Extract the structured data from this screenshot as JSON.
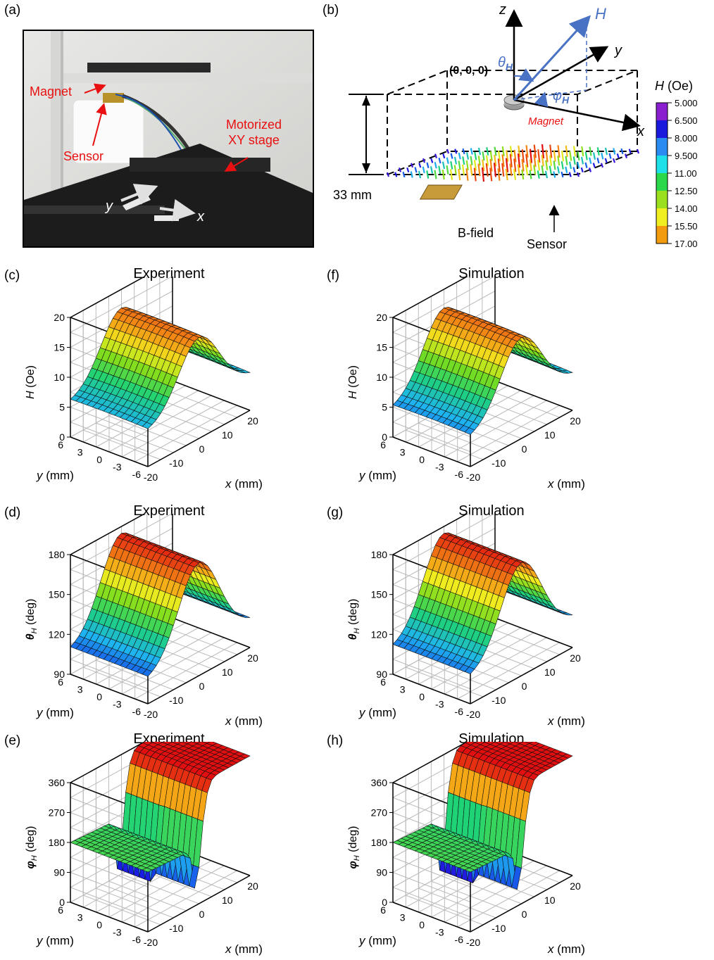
{
  "panels": {
    "a": "(a)",
    "b": "(b)",
    "c": "(c)",
    "d": "(d)",
    "e": "(e)",
    "f": "(f)",
    "g": "(g)",
    "h": "(h)"
  },
  "photo": {
    "magnet": "Magnet",
    "sensor": "Sensor",
    "stage_line1": "Motorized",
    "stage_line2": "XY stage",
    "axis_y": "y",
    "axis_x": "x"
  },
  "schematic": {
    "z": "z",
    "y": "y",
    "x": "x",
    "H": "H",
    "theta": "θ",
    "theta_sub": "H",
    "phi": "φ",
    "phi_sub": "H",
    "origin": "(0, 0, 0)",
    "magnet": "Magnet",
    "distance": "33 mm",
    "bfield": "B-field",
    "sensor": "Sensor"
  },
  "colorbar": {
    "title_italic": "H",
    "title_rest": " (Oe)",
    "ticks": [
      "5.000",
      "6.500",
      "8.000",
      "9.500",
      "11.00",
      "12.50",
      "14.00",
      "15.50",
      "17.00"
    ],
    "colors": [
      "#8a1fd0",
      "#1a1adc",
      "#2a8cf0",
      "#1ee0e8",
      "#2ad84a",
      "#9ae020",
      "#f0f020",
      "#f29a10",
      "#e81010"
    ]
  },
  "chart_data": [
    {
      "panel": "(c)",
      "title": "Experiment",
      "type": "surface",
      "zlabel_sym": "H",
      "zlabel_unit": "(Oe)",
      "zticks": [
        "0",
        "5",
        "10",
        "15",
        "20"
      ],
      "zlim": [
        0,
        20
      ],
      "xlabel": "x (mm)",
      "xticks": [
        "-20",
        "-10",
        "0",
        "10",
        "20"
      ],
      "ylabel": "y (mm)",
      "yticks": [
        "6",
        "3",
        "0",
        "-3",
        "-6"
      ],
      "peak": 17,
      "edge_low": 6,
      "edge_high": 6
    },
    {
      "panel": "(d)",
      "title": "Experiment",
      "type": "surface",
      "zlabel_sym": "θ",
      "zlabel_sub": "H",
      "zlabel_unit": "(deg)",
      "zticks": [
        "90",
        "120",
        "150",
        "180"
      ],
      "zlim": [
        90,
        180
      ],
      "xlabel": "x (mm)",
      "xticks": [
        "-20",
        "-10",
        "0",
        "10",
        "20"
      ],
      "ylabel": "y (mm)",
      "yticks": [
        "6",
        "3",
        "0",
        "-3",
        "-6"
      ],
      "peak": 175,
      "edge_low": 108,
      "edge_high": 110
    },
    {
      "panel": "(e)",
      "title": "Experiment",
      "type": "surface",
      "zlabel_sym": "φ",
      "zlabel_sub": "H",
      "zlabel_unit": "(deg)",
      "zticks": [
        "0",
        "90",
        "180",
        "270",
        "360"
      ],
      "zlim": [
        0,
        360
      ],
      "xlabel": "x (mm)",
      "xticks": [
        "-20",
        "-10",
        "0",
        "10",
        "20"
      ],
      "ylabel": "y (mm)",
      "yticks": [
        "6",
        "3",
        "0",
        "-3",
        "-6"
      ],
      "low_plateau": 180,
      "high_plateau": 360,
      "min": 10
    },
    {
      "panel": "(f)",
      "title": "Simulation",
      "type": "surface",
      "zlabel_sym": "H",
      "zlabel_unit": "(Oe)",
      "zticks": [
        "0",
        "5",
        "10",
        "15",
        "20"
      ],
      "zlim": [
        0,
        20
      ],
      "xlabel": "x (mm)",
      "xticks": [
        "-20",
        "-10",
        "0",
        "10",
        "20"
      ],
      "ylabel": "y (mm)",
      "yticks": [
        "6",
        "3",
        "0",
        "-3",
        "-6"
      ],
      "peak": 17,
      "edge_low": 5,
      "edge_high": 6
    },
    {
      "panel": "(g)",
      "title": "Simulation",
      "type": "surface",
      "zlabel_sym": "θ",
      "zlabel_sub": "H",
      "zlabel_unit": "(deg)",
      "zticks": [
        "90",
        "120",
        "150",
        "180"
      ],
      "zlim": [
        90,
        180
      ],
      "xlabel": "x (mm)",
      "xticks": [
        "-20",
        "-10",
        "0",
        "10",
        "20"
      ],
      "ylabel": "y (mm)",
      "yticks": [
        "6",
        "3",
        "0",
        "-3",
        "-6"
      ],
      "peak": 175,
      "edge_low": 110,
      "edge_high": 112
    },
    {
      "panel": "(h)",
      "title": "Simulation",
      "type": "surface",
      "zlabel_sym": "φ",
      "zlabel_sub": "H",
      "zlabel_unit": "(deg)",
      "zticks": [
        "0",
        "90",
        "180",
        "270",
        "360"
      ],
      "zlim": [
        0,
        360
      ],
      "xlabel": "x (mm)",
      "xticks": [
        "-20",
        "-10",
        "0",
        "10",
        "20"
      ],
      "ylabel": "y (mm)",
      "yticks": [
        "6",
        "3",
        "0",
        "-3",
        "-6"
      ],
      "low_plateau": 180,
      "high_plateau": 360,
      "min": 5
    }
  ]
}
